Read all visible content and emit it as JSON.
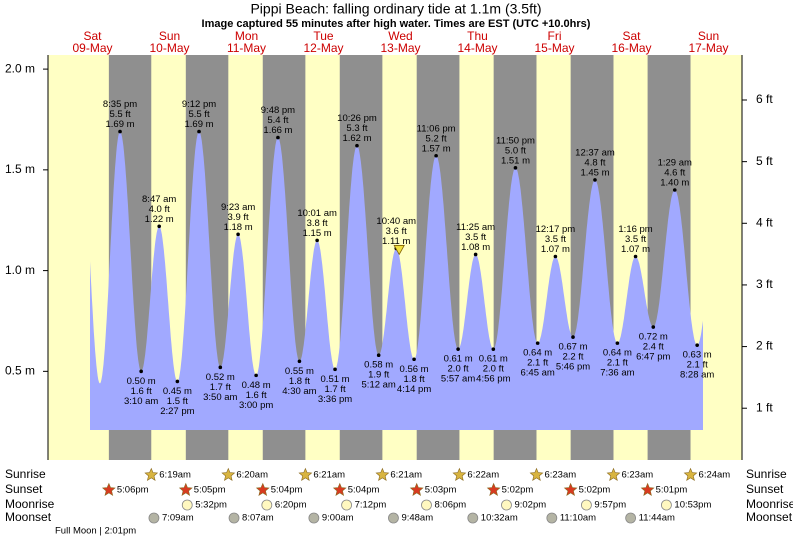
{
  "chart_data": {
    "type": "tide",
    "title": "Pippi Beach: falling  ordinary tide at 1.1m (3.5ft)",
    "subtitle": "Image captured 55 minutes after high water. Times are EST (UTC +10.0hrs)",
    "days": [
      {
        "weekday": "Sat",
        "date": "09-May"
      },
      {
        "weekday": "Sun",
        "date": "10-May"
      },
      {
        "weekday": "Mon",
        "date": "11-May"
      },
      {
        "weekday": "Tue",
        "date": "12-May"
      },
      {
        "weekday": "Wed",
        "date": "13-May"
      },
      {
        "weekday": "Thu",
        "date": "14-May"
      },
      {
        "weekday": "Fri",
        "date": "15-May"
      },
      {
        "weekday": "Sat",
        "date": "16-May"
      },
      {
        "weekday": "Sun",
        "date": "17-May"
      }
    ],
    "extremes": [
      {
        "hour": 14.3,
        "m": 0.44
      },
      {
        "time": "8:35 pm",
        "ft": "5.5 ft",
        "m": 1.69,
        "m_label": "1.69 m"
      },
      {
        "time": "3:10 am",
        "ft": "1.6 ft",
        "m": 0.5,
        "m_label": "0.50 m"
      },
      {
        "time": "8:47 am",
        "ft": "4.0 ft",
        "m": 1.22,
        "m_label": "1.22 m"
      },
      {
        "time": "2:27 pm",
        "ft": "1.5 ft",
        "m": 0.45,
        "m_label": "0.45 m"
      },
      {
        "time": "9:12 pm",
        "ft": "5.5 ft",
        "m": 1.69,
        "m_label": "1.69 m"
      },
      {
        "time": "3:50 am",
        "ft": "1.7 ft",
        "m": 0.52,
        "m_label": "0.52 m"
      },
      {
        "time": "9:23 am",
        "ft": "3.9 ft",
        "m": 1.18,
        "m_label": "1.18 m"
      },
      {
        "time": "3:00 pm",
        "ft": "1.6 ft",
        "m": 0.48,
        "m_label": "0.48 m"
      },
      {
        "time": "9:48 pm",
        "ft": "5.4 ft",
        "m": 1.66,
        "m_label": "1.66 m"
      },
      {
        "time": "4:30 am",
        "ft": "1.8 ft",
        "m": 0.55,
        "m_label": "0.55 m"
      },
      {
        "time": "10:01 am",
        "ft": "3.8 ft",
        "m": 1.15,
        "m_label": "1.15 m"
      },
      {
        "time": "3:36 pm",
        "ft": "1.7 ft",
        "m": 0.51,
        "m_label": "0.51 m"
      },
      {
        "time": "10:26 pm",
        "ft": "5.3 ft",
        "m": 1.62,
        "m_label": "1.62 m"
      },
      {
        "time": "5:12 am",
        "ft": "1.9 ft",
        "m": 0.58,
        "m_label": "0.58 m"
      },
      {
        "time": "10:40 am",
        "ft": "3.6 ft",
        "m": 1.11,
        "m_label": "1.11 m"
      },
      {
        "time": "4:14 pm",
        "ft": "1.8 ft",
        "m": 0.56,
        "m_label": "0.56 m"
      },
      {
        "time": "11:06 pm",
        "ft": "5.2 ft",
        "m": 1.57,
        "m_label": "1.57 m"
      },
      {
        "time": "5:57 am",
        "ft": "2.0 ft",
        "m": 0.61,
        "m_label": "0.61 m"
      },
      {
        "time": "11:25 am",
        "ft": "3.5 ft",
        "m": 1.08,
        "m_label": "1.08 m"
      },
      {
        "time": "4:56 pm",
        "ft": "2.0 ft",
        "m": 0.61,
        "m_label": "0.61 m"
      },
      {
        "time": "11:50 pm",
        "ft": "5.0 ft",
        "m": 1.51,
        "m_label": "1.51 m"
      },
      {
        "time": "6:45 am",
        "ft": "2.1 ft",
        "m": 0.64,
        "m_label": "0.64 m"
      },
      {
        "time": "12:17 pm",
        "ft": "3.5 ft",
        "m": 1.07,
        "m_label": "1.07 m"
      },
      {
        "time": "5:46 pm",
        "ft": "2.2 ft",
        "m": 0.67,
        "m_label": "0.67 m"
      },
      {
        "time": "12:37 am",
        "ft": "4.8 ft",
        "m": 1.45,
        "m_label": "1.45 m"
      },
      {
        "time": "7:36 am",
        "ft": "2.1 ft",
        "m": 0.64,
        "m_label": "0.64 m"
      },
      {
        "time": "1:16 pm",
        "ft": "3.5 ft",
        "m": 1.07,
        "m_label": "1.07 m"
      },
      {
        "time": "6:47 pm",
        "ft": "2.4 ft",
        "m": 0.72,
        "m_label": "0.72 m"
      },
      {
        "time": "1:29 am",
        "ft": "4.6 ft",
        "m": 1.4,
        "m_label": "1.40 m"
      },
      {
        "time": "8:28 am",
        "ft": "2.1 ft",
        "m": 0.63,
        "m_label": "0.63 m"
      }
    ],
    "current": {
      "hour": 107.6,
      "m": 1.1
    },
    "ylim": [
      0.06,
      2.07
    ],
    "yticks": [
      {
        "value": 0.5,
        "label": "0.5 m"
      },
      {
        "value": 1.0,
        "label": "1.0 m"
      },
      {
        "value": 1.5,
        "label": "1.5 m"
      },
      {
        "value": 2.0,
        "label": "2.0 m"
      }
    ],
    "y2lim": [
      0.16,
      6.73
    ],
    "y2ticks": [
      {
        "value": 1,
        "label": "1 ft"
      },
      {
        "value": 2,
        "label": "2 ft"
      },
      {
        "value": 3,
        "label": "3 ft"
      },
      {
        "value": 4,
        "label": "4 ft"
      },
      {
        "value": 5,
        "label": "5 ft"
      },
      {
        "value": 6,
        "label": "6 ft"
      }
    ],
    "colors": {
      "day": "#ffffc4",
      "night": "#8f8f8f",
      "water": "#a1a9ff",
      "day_label": "#cc0000"
    },
    "rows": [
      {
        "label": "Sunrise",
        "icon": "sunrise",
        "times": [
          null,
          "6:19am",
          "6:20am",
          "6:21am",
          "6:21am",
          "6:22am",
          "6:23am",
          "6:23am",
          "6:24am"
        ]
      },
      {
        "label": "Sunset",
        "icon": "sunset",
        "times": [
          "5:06pm",
          "5:05pm",
          "5:04pm",
          "5:04pm",
          "5:03pm",
          "5:02pm",
          "5:02pm",
          "5:01pm",
          null
        ]
      },
      {
        "label": "Moonrise",
        "icon": "moonrise",
        "times": [
          null,
          "5:32pm",
          "6:20pm",
          "7:12pm",
          "8:06pm",
          "9:02pm",
          "9:57pm",
          "10:53pm",
          null
        ]
      },
      {
        "label": "Moonset",
        "icon": "moonset",
        "times": [
          null,
          "7:09am",
          "8:07am",
          "9:00am",
          "9:48am",
          "10:32am",
          "11:10am",
          "11:44am",
          null
        ]
      }
    ],
    "note": "Full Moon | 2:01pm"
  }
}
